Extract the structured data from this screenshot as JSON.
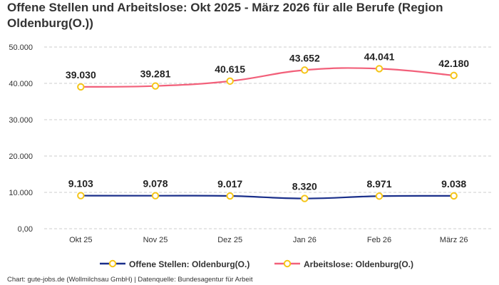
{
  "title": "Offene Stellen und Arbeitslose: Okt 2025 - März 2026 für alle Berufe (Region Oldenburg(O.))",
  "credit": "Chart: gute-jobs.de (Wollmilchsau GmbH) | Datenquelle: Bundesagentur für Arbeit",
  "chart_data": {
    "type": "line",
    "title": "Offene Stellen und Arbeitslose: Okt 2025 - März 2026 für alle Berufe (Region Oldenburg(O.))",
    "categories": [
      "Okt 25",
      "Nov 25",
      "Dez 25",
      "Jan 26",
      "Feb 26",
      "März 26"
    ],
    "ylim": [
      0,
      50000
    ],
    "yticks": [
      0,
      10000,
      20000,
      30000,
      40000,
      50000
    ],
    "ytick_labels": [
      "0,00",
      "10.000",
      "20.000",
      "30.000",
      "40.000",
      "50.000"
    ],
    "grid": true,
    "legend_position": "bottom",
    "marker_color": "#f5c518",
    "series": [
      {
        "name": "Offene Stellen: Oldenburg(O.)",
        "color": "#1a2f8a",
        "values": [
          9103,
          9078,
          9017,
          8320,
          8971,
          9038
        ],
        "labels": [
          "9.103",
          "9.078",
          "9.017",
          "8.320",
          "8.971",
          "9.038"
        ]
      },
      {
        "name": "Arbeitslose: Oldenburg(O.)",
        "color": "#f2607a",
        "values": [
          39030,
          39281,
          40615,
          43652,
          44041,
          42180
        ],
        "labels": [
          "39.030",
          "39.281",
          "40.615",
          "43.652",
          "44.041",
          "42.180"
        ]
      }
    ]
  }
}
